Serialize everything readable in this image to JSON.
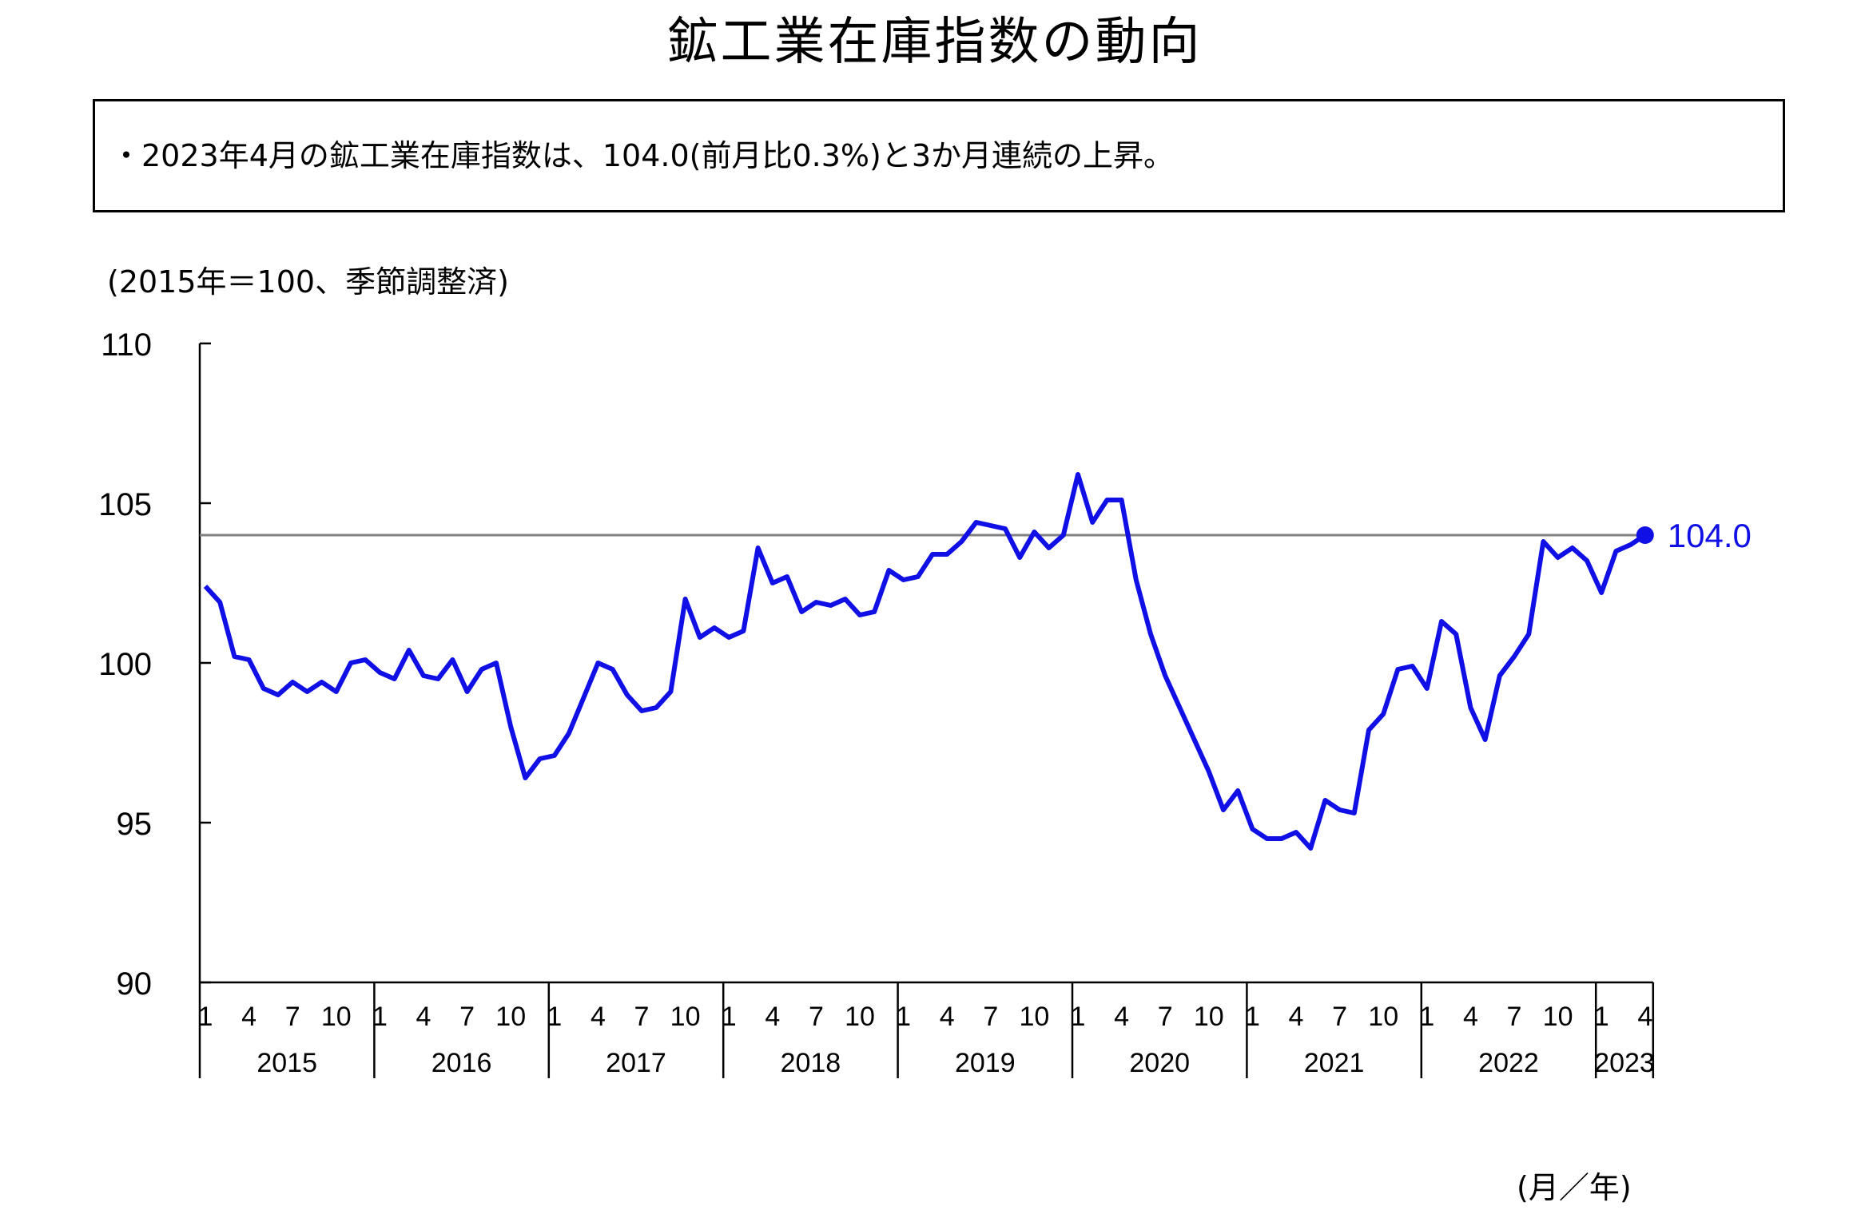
{
  "title": "鉱工業在庫指数の動向",
  "summary": "・2023年4月の鉱工業在庫指数は、104.0(前月比0.3%)と3か月連続の上昇。",
  "unit_note": "(2015年＝100、季節調整済)",
  "x_axis_unit": "(月／年)",
  "colors": {
    "line": "#1010e6",
    "reference": "#808080",
    "axis": "#000000"
  },
  "chart_data": {
    "type": "line",
    "ylim": [
      90,
      110
    ],
    "yticks": [
      110,
      105,
      100,
      95,
      90
    ],
    "grid": false,
    "years": [
      "2015",
      "2016",
      "2017",
      "2018",
      "2019",
      "2020",
      "2021",
      "2022",
      "2023"
    ],
    "month_tick_labels": [
      "1",
      "4",
      "7",
      "10"
    ],
    "last_year_month_ticks": [
      "1",
      "4"
    ],
    "series": [
      {
        "values": [
          102.4,
          101.9,
          100.2,
          100.1,
          99.2,
          99.0,
          99.4,
          99.1,
          99.4,
          99.1,
          100.0,
          100.1,
          99.7,
          99.5,
          100.4,
          99.6,
          99.5,
          100.1,
          99.1,
          99.8,
          100.0,
          98.0,
          96.4,
          97.0,
          97.1,
          97.8,
          98.9,
          100.0,
          99.8,
          99.0,
          98.5,
          98.6,
          99.1,
          102.0,
          100.8,
          101.1,
          100.8,
          101.0,
          103.6,
          102.5,
          102.7,
          101.6,
          101.9,
          101.8,
          102.0,
          101.5,
          101.6,
          102.9,
          102.6,
          102.7,
          103.4,
          103.4,
          103.8,
          104.4,
          104.3,
          104.2,
          103.3,
          104.1,
          103.6,
          104.0,
          105.9,
          104.4,
          105.1,
          105.1,
          102.6,
          100.9,
          99.6,
          98.6,
          97.6,
          96.6,
          95.4,
          96.0,
          94.8,
          94.5,
          94.5,
          94.7,
          94.2,
          95.7,
          95.4,
          95.3,
          97.9,
          98.4,
          99.8,
          99.9,
          99.2,
          101.3,
          100.9,
          98.6,
          97.6,
          99.6,
          100.2,
          100.9,
          103.8,
          103.3,
          103.6,
          103.2,
          102.2,
          103.5,
          103.7,
          104.0
        ]
      }
    ],
    "reference_line": 104.0,
    "last_label": "104.0"
  }
}
